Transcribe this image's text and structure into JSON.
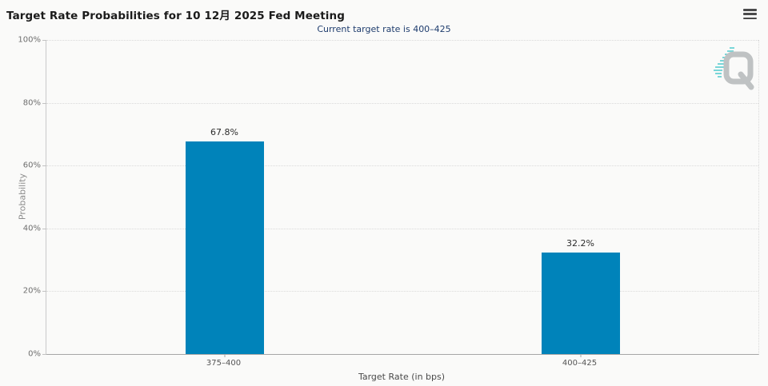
{
  "header": {
    "title": "Target Rate Probabilities for 10 12月 2025 Fed Meeting"
  },
  "chart_data": {
    "type": "bar",
    "title": "Target Rate Probabilities for 10 12月 2025 Fed Meeting",
    "subtitle": "Current target rate is 400–425",
    "categories": [
      "375–400",
      "400–425"
    ],
    "values": [
      67.8,
      32.2
    ],
    "value_labels": [
      "67.8%",
      "32.2%"
    ],
    "xlabel": "Target Rate (in bps)",
    "ylabel": "Probability",
    "ylim": [
      0,
      100
    ],
    "ytick_values": [
      0,
      20,
      40,
      60,
      80,
      100
    ],
    "yticks": [
      "0%",
      "20%",
      "40%",
      "60%",
      "80%",
      "100%"
    ],
    "grid": "horizontal-dotted",
    "legend": "none",
    "bar_color": "#0083ba"
  },
  "watermark": {
    "letter": "Q",
    "gray": "#b9bcbe",
    "teal": "#3cc6ca"
  },
  "colors": {
    "background": "#fafaf9",
    "subtitle_text": "#1e3c6d",
    "axis_line": "#a6a6a6"
  }
}
